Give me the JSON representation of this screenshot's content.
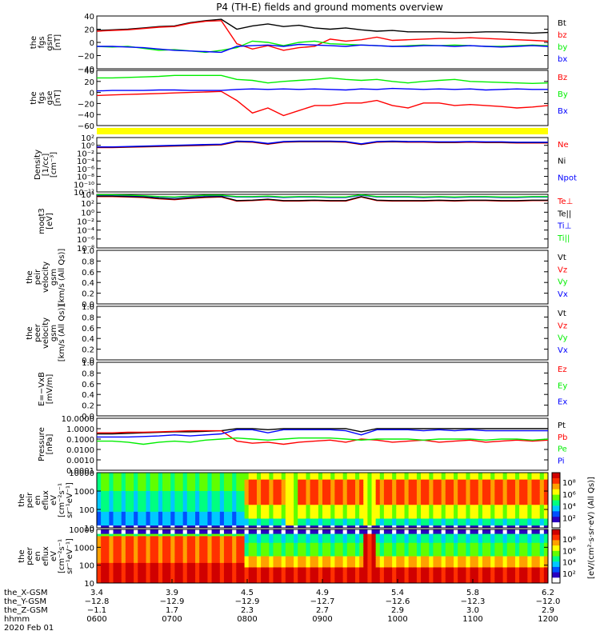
{
  "title": "P4 (TH-E) fields and ground moments overview",
  "colors": {
    "black": "#000000",
    "red": "#ff0000",
    "green": "#00ee00",
    "blue": "#0000ff",
    "yellow": "#ffff00"
  },
  "chart_data": [
    {
      "type": "line",
      "panel": "fgs_gsm",
      "ylabel": [
        "the",
        "fgs",
        "gsm",
        "[nT]"
      ],
      "ylim": [
        -40,
        40
      ],
      "yticks": [
        "40",
        "20",
        "0",
        "−20",
        "−40"
      ],
      "legend": [
        {
          "label": "Bt",
          "color": "#000000"
        },
        {
          "label": "bz",
          "color": "#ff0000"
        },
        {
          "label": "by",
          "color": "#00ee00"
        },
        {
          "label": "bx",
          "color": "#0000ff"
        }
      ],
      "series": [
        {
          "name": "Bt",
          "color": "#000000",
          "values": [
            18,
            19,
            20,
            22,
            24,
            25,
            30,
            33,
            35,
            20,
            25,
            28,
            24,
            26,
            22,
            20,
            22,
            19,
            17,
            18,
            16,
            16,
            16,
            15,
            15,
            16,
            16,
            15,
            14,
            15
          ]
        },
        {
          "name": "bz",
          "color": "#ff0000",
          "values": [
            17,
            18,
            19,
            21,
            23,
            24,
            29,
            32,
            33,
            -2,
            -10,
            -5,
            -12,
            -8,
            -6,
            5,
            2,
            4,
            8,
            3,
            4,
            5,
            6,
            6,
            7,
            6,
            5,
            4,
            3,
            2
          ]
        },
        {
          "name": "by",
          "color": "#00ee00",
          "values": [
            -6,
            -7,
            -6,
            -9,
            -12,
            -11,
            -13,
            -15,
            -12,
            -8,
            2,
            0,
            -5,
            0,
            2,
            -2,
            -3,
            -4,
            -5,
            -6,
            -5,
            -4,
            -5,
            -4,
            -5,
            -6,
            -6,
            -5,
            -4,
            -5
          ]
        },
        {
          "name": "bx",
          "color": "#0000ff",
          "values": [
            -6,
            -6,
            -7,
            -8,
            -10,
            -12,
            -13,
            -14,
            -15,
            -6,
            -5,
            -4,
            -6,
            -3,
            -4,
            -5,
            -6,
            -4,
            -5,
            -6,
            -6,
            -5,
            -5,
            -6,
            -5,
            -6,
            -7,
            -6,
            -5,
            -6
          ]
        }
      ]
    },
    {
      "type": "line",
      "panel": "fgs_gse",
      "ylabel": [
        "the",
        "fgs",
        "gse",
        "[nT]"
      ],
      "ylim": [
        -70,
        40
      ],
      "yticks": [
        "40",
        "20",
        "0",
        "−20",
        "−40",
        "−60"
      ],
      "legend": [
        {
          "label": "Bz",
          "color": "#ff0000"
        },
        {
          "label": "By",
          "color": "#00ee00"
        },
        {
          "label": "Bx",
          "color": "#0000ff"
        }
      ],
      "series": [
        {
          "name": "Bz",
          "color": "#ff0000",
          "values": [
            -10,
            -9,
            -8,
            -7,
            -6,
            -5,
            -4,
            -3,
            -2,
            -20,
            -45,
            -35,
            -50,
            -40,
            -30,
            -30,
            -25,
            -25,
            -20,
            -30,
            -35,
            -25,
            -25,
            -30,
            -28,
            -30,
            -32,
            -35,
            -33,
            -30
          ]
        },
        {
          "name": "By",
          "color": "#00ee00",
          "values": [
            25,
            25,
            26,
            27,
            28,
            30,
            30,
            30,
            30,
            22,
            20,
            15,
            18,
            20,
            22,
            25,
            22,
            20,
            22,
            18,
            15,
            18,
            20,
            22,
            18,
            17,
            16,
            15,
            14,
            15
          ]
        },
        {
          "name": "Bx",
          "color": "#0000ff",
          "values": [
            -1,
            0,
            0,
            0,
            1,
            1,
            0,
            0,
            0,
            2,
            3,
            2,
            3,
            2,
            3,
            2,
            1,
            3,
            2,
            4,
            3,
            2,
            3,
            2,
            3,
            1,
            2,
            3,
            2,
            2
          ]
        }
      ]
    },
    {
      "type": "line",
      "panel": "density",
      "ylabel": [
        "Density",
        "[1/cc]",
        "[cm⁻³]"
      ],
      "yscale": "log",
      "yticks": [
        "10²",
        "10⁰",
        "10⁻²",
        "10⁻⁴",
        "10⁻⁶",
        "10⁻⁸",
        "10⁻¹⁰",
        "10⁻¹²"
      ],
      "legend": [
        {
          "label": "Ne",
          "color": "#ff0000"
        },
        {
          "label": "Ni",
          "color": "#000000"
        },
        {
          "label": "Npot",
          "color": "#0000ff"
        }
      ],
      "series": [
        {
          "name": "Ne",
          "color": "#ff0000",
          "values": [
            -0.6,
            -0.6,
            -0.5,
            -0.4,
            -0.3,
            -0.2,
            -0.1,
            0,
            0.1,
            0.9,
            0.8,
            0.3,
            0.8,
            0.9,
            0.9,
            0.9,
            0.8,
            0.2,
            0.8,
            0.9,
            0.8,
            0.8,
            0.7,
            0.7,
            0.8,
            0.7,
            0.7,
            0.6,
            0.6,
            0.6
          ]
        },
        {
          "name": "Ni",
          "color": "#000000",
          "values": [
            -0.5,
            -0.5,
            -0.4,
            -0.3,
            -0.2,
            -0.1,
            0,
            0.1,
            0.2,
            1.0,
            0.9,
            0.4,
            0.9,
            1.0,
            1.0,
            1.0,
            0.9,
            0.3,
            0.9,
            1.0,
            0.9,
            0.9,
            0.8,
            0.8,
            0.9,
            0.8,
            0.8,
            0.7,
            0.7,
            0.7
          ]
        },
        {
          "name": "Npot",
          "color": "#0000ff",
          "values": [
            -0.4,
            -0.4,
            -0.3,
            -0.2,
            -0.1,
            0,
            0.1,
            0.2,
            0.3,
            1.1,
            1.0,
            0.5,
            1.0,
            1.1,
            1.1,
            1.1,
            1.0,
            0.4,
            1.0,
            1.1,
            1.0,
            1.0,
            0.9,
            0.9,
            1.0,
            0.9,
            0.9,
            0.8,
            0.8,
            0.8
          ]
        }
      ]
    },
    {
      "type": "line",
      "panel": "temperature",
      "ylabel": [
        "moqt3",
        "[eV]"
      ],
      "yscale": "log",
      "yticks": [
        "10⁴",
        "10²",
        "10⁰",
        "10⁻²",
        "10⁻⁴",
        "10⁻⁶",
        "10⁻⁸"
      ],
      "legend": [
        {
          "label": "Te⊥",
          "color": "#ff0000"
        },
        {
          "label": "Te||",
          "color": "#000000"
        },
        {
          "label": "Ti⊥",
          "color": "#0000ff"
        },
        {
          "label": "Ti||",
          "color": "#00ee00"
        }
      ],
      "series": [
        {
          "name": "Te⊥",
          "color": "#ff0000",
          "values": [
            3.5,
            3.5,
            3.4,
            3.3,
            3.0,
            2.8,
            3.1,
            3.3,
            3.4,
            2.5,
            2.6,
            2.8,
            2.5,
            2.5,
            2.6,
            2.5,
            2.5,
            3.4,
            2.6,
            2.5,
            2.5,
            2.5,
            2.6,
            2.5,
            2.6,
            2.6,
            2.5,
            2.5,
            2.6,
            2.6
          ]
        },
        {
          "name": "Te||",
          "color": "#000000",
          "values": [
            3.6,
            3.6,
            3.5,
            3.4,
            3.1,
            2.9,
            3.2,
            3.4,
            3.5,
            2.6,
            2.7,
            2.9,
            2.6,
            2.6,
            2.7,
            2.6,
            2.6,
            3.5,
            2.7,
            2.6,
            2.6,
            2.6,
            2.7,
            2.6,
            2.7,
            2.7,
            2.6,
            2.6,
            2.7,
            2.7
          ]
        },
        {
          "name": "Ti⊥",
          "color": "#0000ff",
          "values": [
            3.8,
            3.8,
            3.7,
            3.6,
            3.4,
            3.3,
            3.5,
            3.7,
            3.7,
            3.4,
            3.4,
            3.5,
            3.3,
            3.4,
            3.4,
            3.3,
            3.3,
            3.8,
            3.4,
            3.4,
            3.4,
            3.3,
            3.4,
            3.3,
            3.4,
            3.4,
            3.3,
            3.3,
            3.4,
            3.4
          ]
        },
        {
          "name": "Ti||",
          "color": "#00ee00",
          "values": [
            3.9,
            3.9,
            3.8,
            3.7,
            3.5,
            3.4,
            3.6,
            3.8,
            3.8,
            3.5,
            3.5,
            3.6,
            3.4,
            3.5,
            3.5,
            3.4,
            3.4,
            3.9,
            3.5,
            3.5,
            3.5,
            3.4,
            3.5,
            3.4,
            3.5,
            3.5,
            3.4,
            3.4,
            3.5,
            3.5
          ]
        }
      ]
    },
    {
      "type": "line",
      "panel": "peir_velocity",
      "ylabel": [
        "the",
        "peir",
        "velocity",
        "gsm",
        "[km/s (All Qs)]"
      ],
      "ylim": [
        0,
        1
      ],
      "yticks": [
        "1.0",
        "0.8",
        "0.6",
        "0.4",
        "0.2",
        "0.0"
      ],
      "legend": [
        {
          "label": "Vt",
          "color": "#000000"
        },
        {
          "label": "Vz",
          "color": "#ff0000"
        },
        {
          "label": "Vy",
          "color": "#00ee00"
        },
        {
          "label": "Vx",
          "color": "#0000ff"
        }
      ],
      "series": []
    },
    {
      "type": "line",
      "panel": "peer_velocity",
      "ylabel": [
        "the",
        "peer",
        "velocity",
        "gsm",
        "[km/s (All Qs)]"
      ],
      "ylim": [
        0,
        1
      ],
      "yticks": [
        "1.0",
        "0.8",
        "0.6",
        "0.4",
        "0.2",
        "0.0"
      ],
      "legend": [
        {
          "label": "Vt",
          "color": "#000000"
        },
        {
          "label": "Vz",
          "color": "#ff0000"
        },
        {
          "label": "Vy",
          "color": "#00ee00"
        },
        {
          "label": "Vx",
          "color": "#0000ff"
        }
      ],
      "series": []
    },
    {
      "type": "line",
      "panel": "efield",
      "ylabel": [
        "E=−VxB",
        "[mV/m]"
      ],
      "ylim": [
        0,
        1
      ],
      "yticks": [
        "1.0",
        "0.8",
        "0.6",
        "0.4",
        "0.2",
        "0.0"
      ],
      "legend": [
        {
          "label": "Ez",
          "color": "#ff0000"
        },
        {
          "label": "Ey",
          "color": "#00ee00"
        },
        {
          "label": "Ex",
          "color": "#0000ff"
        }
      ],
      "series": []
    },
    {
      "type": "line",
      "panel": "pressure",
      "ylabel": [
        "Pressure",
        "[nPa]"
      ],
      "yscale": "log",
      "yticks": [
        "10.0000",
        "1.0000",
        "0.1000",
        "0.0100",
        "0.0010",
        "0.0001"
      ],
      "legend": [
        {
          "label": "Pt",
          "color": "#000000"
        },
        {
          "label": "Pb",
          "color": "#ff0000"
        },
        {
          "label": "Pe",
          "color": "#00ee00"
        },
        {
          "label": "Pi",
          "color": "#0000ff"
        }
      ],
      "series": [
        {
          "name": "Pt",
          "color": "#000000",
          "values": [
            -0.5,
            -0.5,
            -0.45,
            -0.4,
            -0.35,
            -0.3,
            -0.3,
            -0.25,
            -0.2,
            0,
            0,
            -0.1,
            0,
            0,
            0,
            0,
            0,
            -0.3,
            0,
            0,
            0,
            0,
            0,
            0,
            0,
            0,
            0,
            0,
            0,
            0
          ]
        },
        {
          "name": "Pb",
          "color": "#ff0000",
          "values": [
            -0.4,
            -0.4,
            -0.35,
            -0.35,
            -0.3,
            -0.25,
            -0.2,
            -0.2,
            -0.2,
            -1.2,
            -1.4,
            -1.3,
            -1.5,
            -1.3,
            -1.2,
            -1.1,
            -1.3,
            -1.0,
            -1.1,
            -1.3,
            -1.2,
            -1.1,
            -1.3,
            -1.2,
            -1.1,
            -1.3,
            -1.2,
            -1.1,
            -1.2,
            -1.1
          ]
        },
        {
          "name": "Pe",
          "color": "#00ee00",
          "values": [
            -1.2,
            -1.2,
            -1.3,
            -1.5,
            -1.3,
            -1.2,
            -1.3,
            -1.1,
            -1.0,
            -0.9,
            -1.0,
            -1.1,
            -1.0,
            -0.9,
            -0.9,
            -0.9,
            -1.0,
            -1.1,
            -1.0,
            -1.0,
            -1.0,
            -1.1,
            -1.0,
            -1.0,
            -1.0,
            -1.1,
            -1.0,
            -1.0,
            -1.1,
            -1.0
          ]
        },
        {
          "name": "Pi",
          "color": "#0000ff",
          "values": [
            -0.8,
            -0.8,
            -0.8,
            -0.75,
            -0.7,
            -0.6,
            -0.7,
            -0.6,
            -0.5,
            -0.1,
            -0.1,
            -0.4,
            -0.1,
            -0.1,
            -0.1,
            -0.1,
            -0.2,
            -0.6,
            -0.1,
            -0.1,
            -0.1,
            -0.2,
            -0.1,
            -0.2,
            -0.1,
            -0.2,
            -0.2,
            -0.2,
            -0.2,
            -0.2
          ]
        }
      ]
    },
    {
      "type": "heatmap",
      "panel": "peir_spectrogram",
      "ylabel": [
        "the",
        "peir",
        "en",
        "eflux",
        "eV",
        "[cm⁻²s⁻¹",
        "sr⁻¹eV⁻¹]"
      ],
      "yscale": "log",
      "yticks": [
        "10000",
        "1000",
        "100",
        "10"
      ]
    },
    {
      "type": "heatmap",
      "panel": "peer_spectrogram",
      "ylabel": [
        "the",
        "peer",
        "en",
        "eflux",
        "eV",
        "[cm⁻²s⁻¹",
        "sr⁻¹eV⁻¹]"
      ],
      "yscale": "log",
      "yticks": [
        "10000",
        "1000",
        "100",
        "10"
      ]
    }
  ],
  "colorbar": {
    "upper": [
      "10⁸",
      "10⁶",
      "10⁴",
      "10²"
    ],
    "lower": [
      "10⁸",
      "10⁶",
      "10⁴",
      "10²"
    ],
    "label": "[eV/(cm²·s·sr·eV) (All Qs)]"
  },
  "xaxis": {
    "rows": [
      {
        "label": "the_X-GSM",
        "values": [
          "3.4",
          "3.9",
          "4.5",
          "4.9",
          "5.4",
          "5.8",
          "6.2"
        ]
      },
      {
        "label": "the_Y-GSM",
        "values": [
          "−12.8",
          "−12.9",
          "−12.9",
          "−12.7",
          "−12.6",
          "−12.3",
          "−12.0"
        ]
      },
      {
        "label": "the_Z-GSM",
        "values": [
          "−1.1",
          "1.7",
          "2.3",
          "2.7",
          "2.9",
          "3.0",
          "2.9"
        ]
      },
      {
        "label": "hhmm",
        "values": [
          "0600",
          "0700",
          "0800",
          "0900",
          "1000",
          "1100",
          "1200"
        ]
      }
    ],
    "date": "2020 Feb 01"
  }
}
